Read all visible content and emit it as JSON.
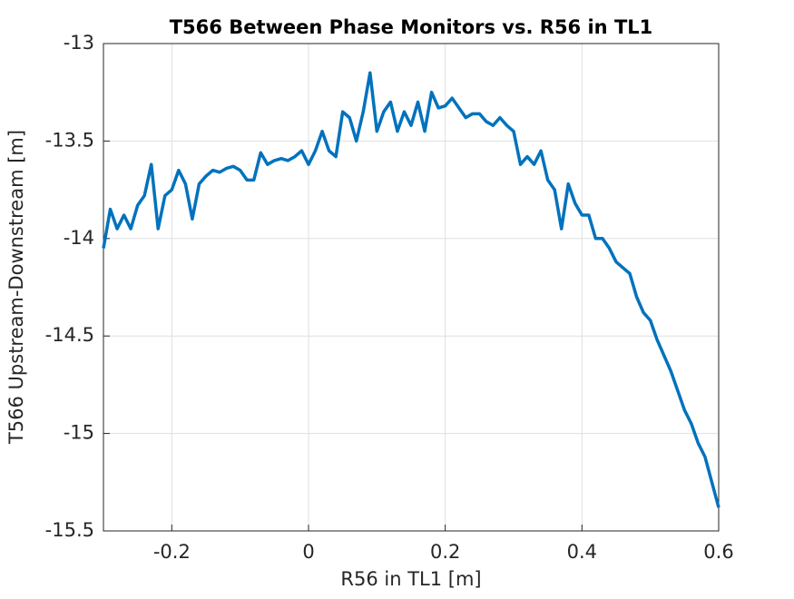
{
  "chart_data": {
    "type": "line",
    "title": "T566 Between Phase Monitors vs. R56 in TL1",
    "x_label": "R56 in TL1 [m]",
    "y_label": "T566 Upstream-Downstream [m]",
    "xlim": [
      -0.3,
      0.6
    ],
    "ylim": [
      -15.5,
      -13
    ],
    "xticks": [
      -0.2,
      0,
      0.2,
      0.4,
      0.6
    ],
    "yticks": [
      -13,
      -13.5,
      -14,
      -14.5,
      -15,
      -15.5
    ],
    "grid": true,
    "x": [
      -0.3,
      -0.29,
      -0.28,
      -0.27,
      -0.26,
      -0.25,
      -0.24,
      -0.23,
      -0.22,
      -0.21,
      -0.2,
      -0.19,
      -0.18,
      -0.17,
      -0.16,
      -0.15,
      -0.14,
      -0.13,
      -0.12,
      -0.11,
      -0.1,
      -0.09,
      -0.08,
      -0.07,
      -0.06,
      -0.05,
      -0.04,
      -0.03,
      -0.02,
      -0.01,
      0,
      0.01,
      0.02,
      0.03,
      0.04,
      0.05,
      0.06,
      0.07,
      0.08,
      0.09,
      0.1,
      0.11,
      0.12,
      0.13,
      0.14,
      0.15,
      0.16,
      0.17,
      0.18,
      0.19,
      0.2,
      0.21,
      0.22,
      0.23,
      0.24,
      0.25,
      0.26,
      0.27,
      0.28,
      0.29,
      0.3,
      0.31,
      0.32,
      0.33,
      0.34,
      0.35,
      0.36,
      0.37,
      0.38,
      0.39,
      0.4,
      0.41,
      0.42,
      0.43,
      0.44,
      0.45,
      0.46,
      0.47,
      0.48,
      0.49,
      0.5,
      0.51,
      0.52,
      0.53,
      0.54,
      0.55,
      0.56,
      0.57,
      0.58,
      0.59,
      0.6
    ],
    "series": [
      {
        "color": "#0072bd",
        "values": [
          -14.05,
          -13.85,
          -13.95,
          -13.88,
          -13.95,
          -13.83,
          -13.78,
          -13.62,
          -13.95,
          -13.78,
          -13.75,
          -13.65,
          -13.72,
          -13.9,
          -13.72,
          -13.68,
          -13.65,
          -13.66,
          -13.64,
          -13.63,
          -13.65,
          -13.7,
          -13.7,
          -13.56,
          -13.62,
          -13.6,
          -13.59,
          -13.6,
          -13.58,
          -13.55,
          -13.62,
          -13.55,
          -13.45,
          -13.55,
          -13.58,
          -13.35,
          -13.38,
          -13.5,
          -13.35,
          -13.15,
          -13.45,
          -13.35,
          -13.3,
          -13.45,
          -13.35,
          -13.42,
          -13.3,
          -13.45,
          -13.25,
          -13.33,
          -13.32,
          -13.28,
          -13.33,
          -13.38,
          -13.36,
          -13.36,
          -13.4,
          -13.42,
          -13.38,
          -13.42,
          -13.45,
          -13.62,
          -13.58,
          -13.62,
          -13.55,
          -13.7,
          -13.75,
          -13.95,
          -13.72,
          -13.82,
          -13.88,
          -13.88,
          -14,
          -14,
          -14.05,
          -14.12,
          -14.15,
          -14.18,
          -14.3,
          -14.38,
          -14.42,
          -14.52,
          -14.6,
          -14.68,
          -14.78,
          -14.88,
          -14.95,
          -15.05,
          -15.12,
          -15.25,
          -15.38
        ]
      }
    ]
  }
}
